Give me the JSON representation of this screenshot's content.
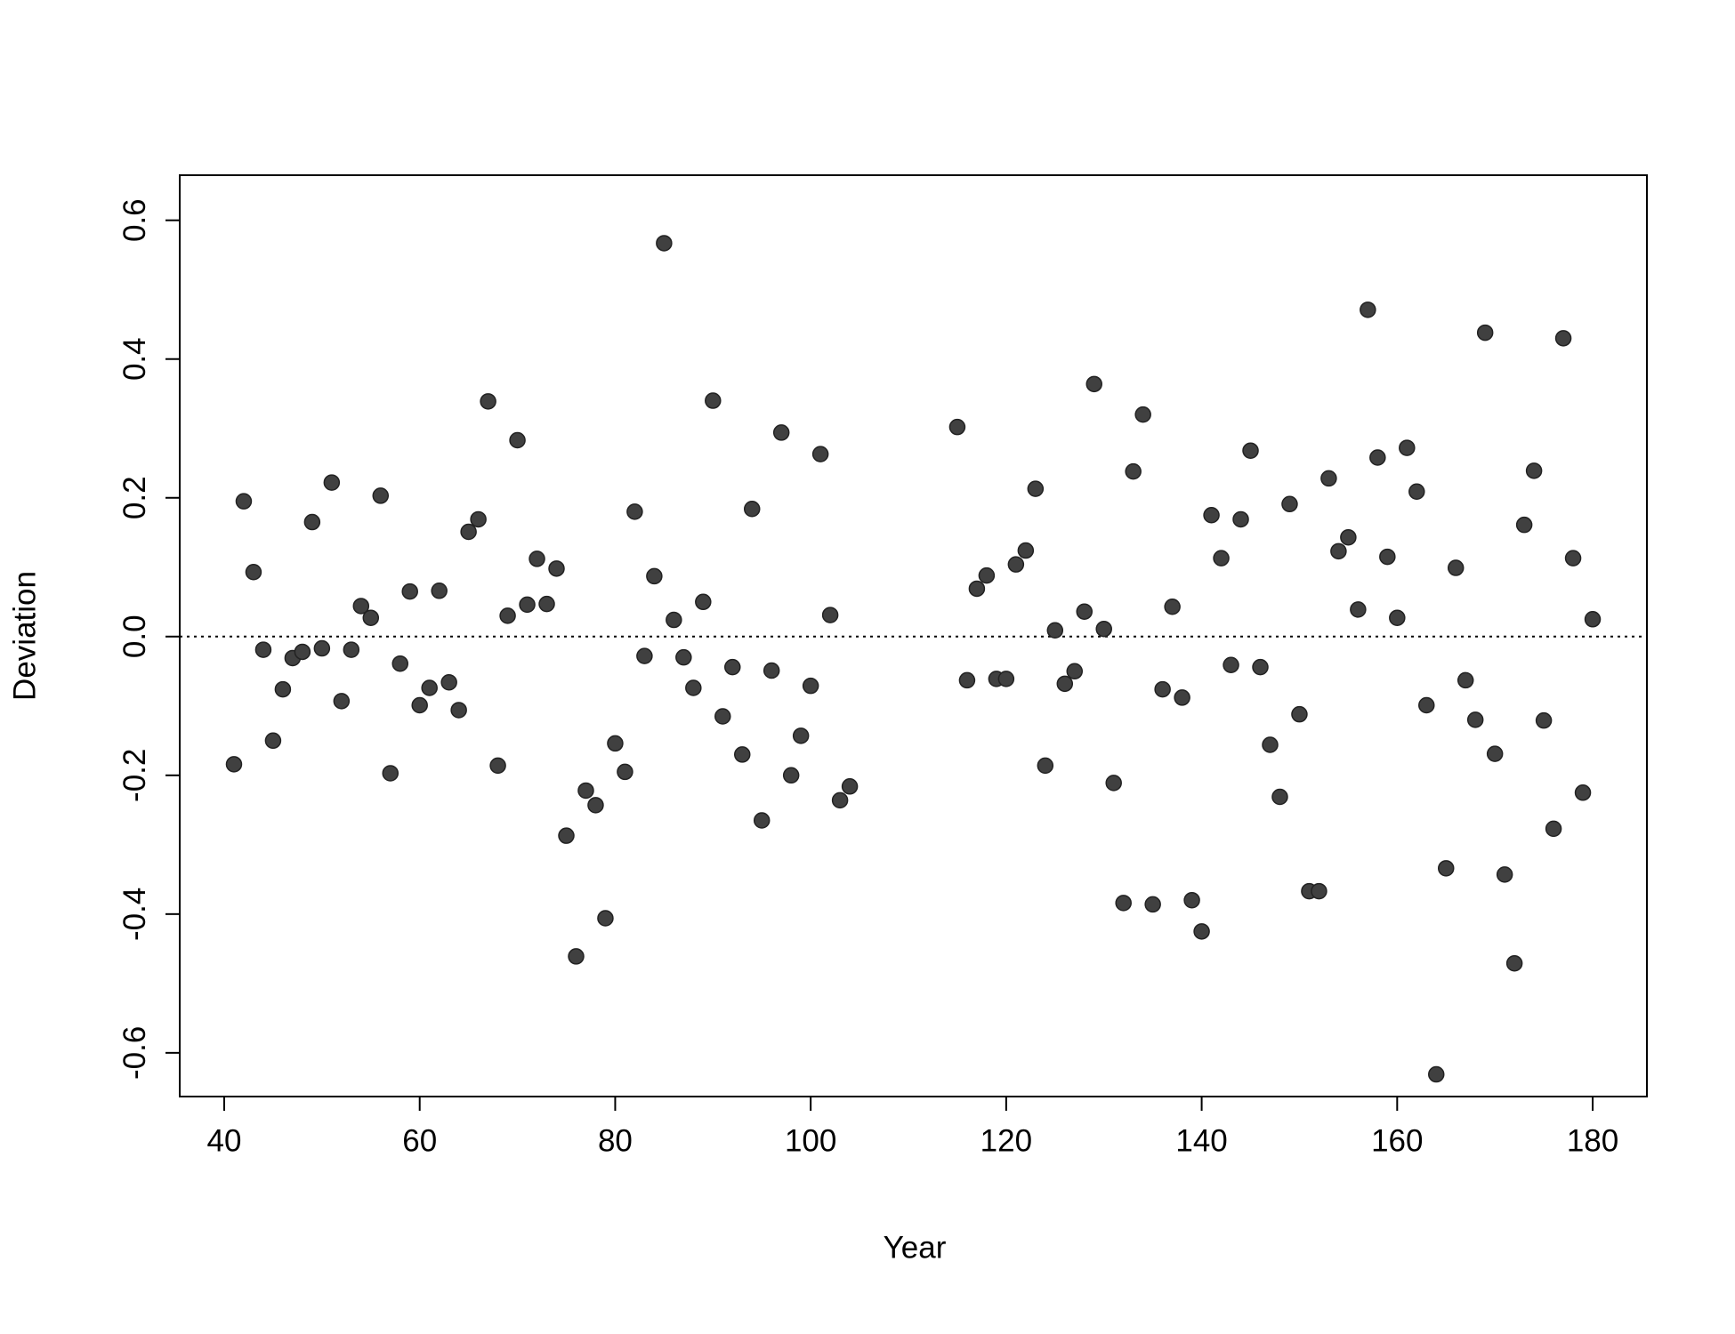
{
  "chart_data": {
    "type": "scatter",
    "x_label": "Year",
    "y_label": "Deviation",
    "x": [
      41,
      42,
      43,
      44,
      45,
      46,
      47,
      48,
      49,
      50,
      51,
      52,
      53,
      54,
      55,
      56,
      57,
      58,
      59,
      60,
      61,
      62,
      63,
      64,
      65,
      66,
      67,
      68,
      69,
      70,
      71,
      72,
      73,
      74,
      75,
      76,
      77,
      78,
      79,
      80,
      81,
      82,
      83,
      84,
      85,
      86,
      87,
      88,
      89,
      90,
      91,
      92,
      93,
      94,
      95,
      96,
      97,
      98,
      99,
      100,
      101,
      102,
      103,
      104,
      115,
      116,
      117,
      118,
      119,
      120,
      121,
      122,
      123,
      124,
      125,
      126,
      127,
      128,
      129,
      130,
      131,
      132,
      133,
      134,
      135,
      136,
      137,
      138,
      139,
      140,
      141,
      142,
      143,
      144,
      145,
      146,
      147,
      148,
      149,
      150,
      151,
      152,
      153,
      154,
      155,
      156,
      157,
      158,
      159,
      160,
      161,
      162,
      163,
      164,
      165,
      166,
      167,
      168,
      169,
      170,
      171,
      172,
      173,
      174,
      175,
      176,
      177,
      178,
      179,
      180
    ],
    "values": [
      -0.184,
      0.195,
      0.093,
      -0.019,
      -0.15,
      -0.076,
      -0.031,
      -0.022,
      0.165,
      -0.017,
      0.222,
      -0.093,
      -0.019,
      0.044,
      0.027,
      0.203,
      -0.197,
      -0.039,
      0.065,
      -0.099,
      -0.074,
      0.066,
      -0.066,
      -0.106,
      0.151,
      0.169,
      0.339,
      -0.186,
      0.03,
      0.283,
      0.046,
      0.112,
      0.047,
      0.098,
      -0.287,
      -0.461,
      -0.222,
      -0.243,
      -0.406,
      -0.154,
      -0.195,
      0.18,
      -0.028,
      0.087,
      0.567,
      0.024,
      -0.03,
      -0.074,
      0.05,
      0.34,
      -0.115,
      -0.044,
      -0.17,
      0.184,
      -0.265,
      -0.049,
      0.294,
      -0.2,
      -0.143,
      -0.071,
      0.263,
      0.031,
      -0.236,
      -0.216,
      0.302,
      -0.063,
      0.069,
      0.088,
      -0.061,
      -0.061,
      0.104,
      0.124,
      0.213,
      -0.186,
      0.009,
      -0.068,
      -0.05,
      0.036,
      0.364,
      0.011,
      -0.211,
      -0.384,
      0.238,
      0.32,
      -0.386,
      -0.076,
      0.043,
      -0.088,
      -0.38,
      -0.425,
      0.175,
      0.113,
      -0.041,
      0.169,
      0.268,
      -0.044,
      -0.156,
      -0.231,
      0.191,
      -0.112,
      -0.367,
      -0.367,
      0.228,
      0.123,
      0.143,
      0.039,
      0.471,
      0.258,
      0.115,
      0.027,
      0.272,
      0.209,
      -0.099,
      -0.631,
      -0.334,
      0.099,
      -0.063,
      -0.12,
      0.438,
      -0.169,
      -0.343,
      -0.471,
      0.161,
      0.239,
      -0.121,
      -0.277,
      0.43,
      0.113,
      -0.225,
      0.025
    ],
    "color": "#404040",
    "xlim": [
      35.45,
      185.55
    ],
    "ylim": [
      -0.663,
      0.665
    ],
    "xticks": [
      40,
      60,
      80,
      100,
      120,
      140,
      160,
      180
    ],
    "yticks": [
      -0.6,
      -0.4,
      -0.2,
      {
        "value": 0,
        "label": "0.0"
      },
      0.2,
      0.4,
      0.6
    ],
    "reference_line": 0,
    "grid": false
  }
}
